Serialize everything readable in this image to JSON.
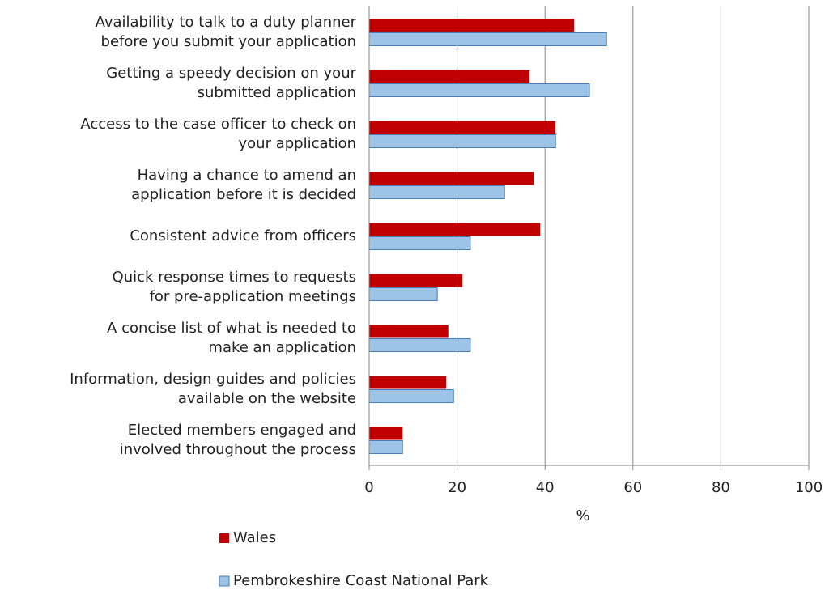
{
  "chart_data": {
    "type": "bar",
    "orientation": "horizontal",
    "categories": [
      "Availability to talk to a duty planner\nbefore you submit your application",
      "Getting a speedy decision on your\nsubmitted application",
      "Access to the case officer to check on\nyour application",
      "Having a chance to amend an\napplication before it is decided",
      "Consistent advice from officers",
      "Quick response times to requests\nfor pre-application meetings",
      "A concise list of what is needed to\nmake an application",
      "Information, design guides and policies\navailable on the website",
      "Elected members engaged and\ninvolved throughout the process"
    ],
    "series": [
      {
        "name": "Wales",
        "color": "#c00000",
        "values": [
          46.6,
          36.5,
          42.4,
          37.4,
          38.9,
          21.2,
          18.0,
          17.5,
          7.6
        ]
      },
      {
        "name": "Pembrokeshire Coast National Park",
        "color": "#9dc3e6",
        "values": [
          54.0,
          50.1,
          42.4,
          30.8,
          23.0,
          15.5,
          23.0,
          19.2,
          7.6
        ]
      }
    ],
    "xlabel": "%",
    "xlim": [
      0,
      100
    ],
    "xticks": [
      0,
      20,
      40,
      60,
      80,
      100
    ],
    "grid": true,
    "legend": "bottom"
  }
}
